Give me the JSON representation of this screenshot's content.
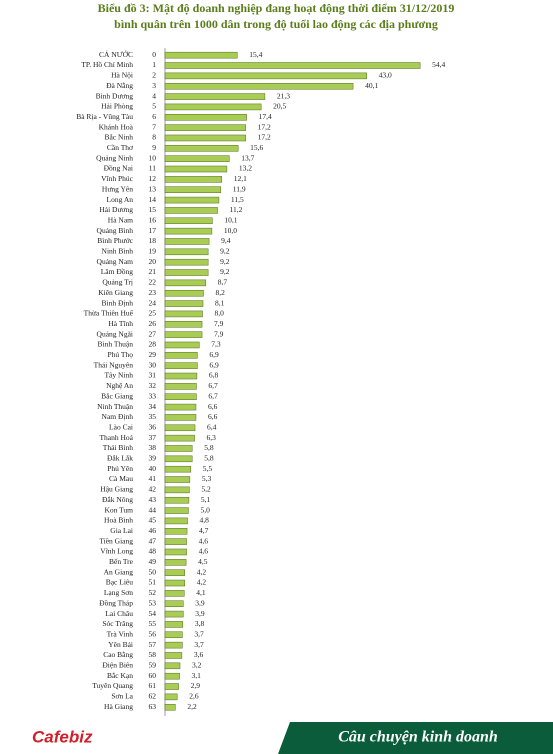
{
  "chart_data": {
    "type": "bar",
    "orientation": "horizontal",
    "title": "Biểu đồ 3: Mật độ doanh nghiệp đang hoạt động thời điểm 31/12/2019",
    "subtitle": "bình quân trên 1000 dân trong độ tuổi lao động các địa phương",
    "color": "#a9cc55",
    "categories": [
      "CẢ NƯỚC",
      "TP. Hồ Chí Minh",
      "Hà Nội",
      "Đà Nẵng",
      "Bình Dương",
      "Hải Phòng",
      "Bà Rịa - Vũng Tàu",
      "Khánh Hoà",
      "Bắc Ninh",
      "Cần Thơ",
      "Quảng Ninh",
      "Đồng Nai",
      "Vĩnh Phúc",
      "Hưng Yên",
      "Long An",
      "Hải Dương",
      "Hà Nam",
      "Quảng Bình",
      "Bình Phước",
      "Ninh Bình",
      "Quảng Nam",
      "Lâm Đồng",
      "Quảng Trị",
      "Kiên Giang",
      "Bình Định",
      "Thừa Thiên Huế",
      "Hà Tĩnh",
      "Quảng Ngãi",
      "Bình Thuận",
      "Phú Thọ",
      "Thái Nguyên",
      "Tây Ninh",
      "Nghệ An",
      "Bắc Giang",
      "Ninh Thuận",
      "Nam Định",
      "Lào Cai",
      "Thanh Hoá",
      "Thái Bình",
      "Đắk Lắk",
      "Phú Yên",
      "Cà Mau",
      "Hậu Giang",
      "Đắk Nông",
      "Kon Tum",
      "Hoà Bình",
      "Gia Lai",
      "Tiền Giang",
      "Vĩnh Long",
      "Bến Tre",
      "An Giang",
      "Bạc Liêu",
      "Lạng Sơn",
      "Đồng Tháp",
      "Lai Châu",
      "Sóc Trăng",
      "Trà Vinh",
      "Yên Bái",
      "Cao Bằng",
      "Điện Biên",
      "Bắc Kạn",
      "Tuyên Quang",
      "Sơn La",
      "Hà Giang"
    ],
    "ranks": [
      0,
      1,
      2,
      3,
      4,
      5,
      6,
      7,
      8,
      9,
      10,
      11,
      12,
      13,
      14,
      15,
      16,
      17,
      18,
      19,
      20,
      21,
      22,
      23,
      24,
      25,
      26,
      27,
      28,
      29,
      30,
      31,
      32,
      33,
      34,
      35,
      36,
      37,
      38,
      39,
      40,
      41,
      42,
      43,
      44,
      45,
      46,
      47,
      48,
      49,
      50,
      51,
      52,
      53,
      54,
      55,
      56,
      57,
      58,
      59,
      60,
      61,
      62,
      63
    ],
    "values": [
      15.4,
      54.4,
      43.0,
      40.1,
      21.3,
      20.5,
      17.4,
      17.2,
      17.2,
      15.6,
      13.7,
      13.2,
      12.1,
      11.9,
      11.5,
      11.2,
      10.1,
      10.0,
      9.4,
      9.2,
      9.2,
      9.2,
      8.7,
      8.2,
      8.1,
      8.0,
      7.9,
      7.9,
      7.3,
      6.9,
      6.9,
      6.8,
      6.7,
      6.7,
      6.6,
      6.6,
      6.4,
      6.3,
      5.8,
      5.8,
      5.5,
      5.3,
      5.2,
      5.1,
      5.0,
      4.8,
      4.7,
      4.6,
      4.6,
      4.5,
      4.2,
      4.2,
      4.1,
      3.9,
      3.9,
      3.8,
      3.7,
      3.7,
      3.6,
      3.2,
      3.1,
      2.9,
      2.6,
      2.2
    ],
    "value_labels": [
      "15,4",
      "54,4",
      "43,0",
      "40,1",
      "21,3",
      "20,5",
      "17,4",
      "17,2",
      "17,2",
      "15,6",
      "13,7",
      "13,2",
      "12,1",
      "11,9",
      "11,5",
      "11,2",
      "10,1",
      "10,0",
      "9,4",
      "9,2",
      "9,2",
      "9,2",
      "8,7",
      "8,2",
      "8,1",
      "8,0",
      "7,9",
      "7,9",
      "7,3",
      "6,9",
      "6,9",
      "6,8",
      "6,7",
      "6,7",
      "6,6",
      "6,6",
      "6,4",
      "6,3",
      "5,8",
      "5,8",
      "5,5",
      "5,3",
      "5,2",
      "5,1",
      "5,0",
      "4,8",
      "4,7",
      "4,6",
      "4,6",
      "4,5",
      "4,2",
      "4,2",
      "4,1",
      "3,9",
      "3,9",
      "3,8",
      "3,7",
      "3,7",
      "3,6",
      "3,2",
      "3,1",
      "2,9",
      "2,6",
      "2,2"
    ]
  },
  "footer": {
    "logo": "Cafebiz",
    "tagline": "Câu chuyện kinh doanh"
  }
}
